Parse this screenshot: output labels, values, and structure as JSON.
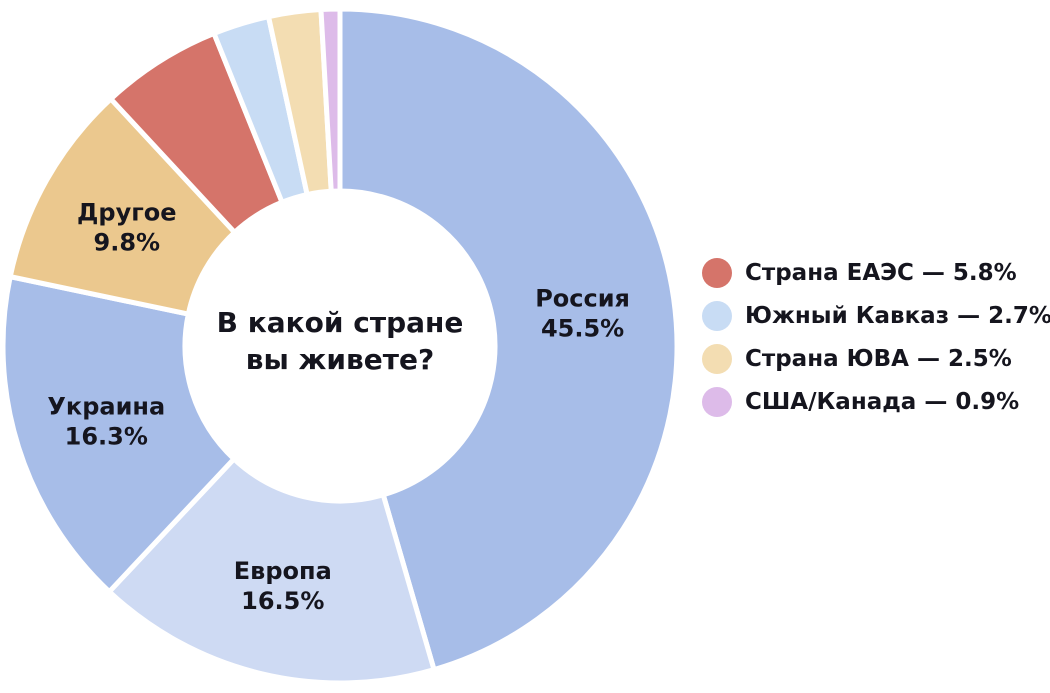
{
  "chart_data": {
    "type": "pie",
    "donut": true,
    "title": "В какой стране вы живете?",
    "title_lines": [
      "В какой стране",
      "вы живете?"
    ],
    "units": "%",
    "start_angle_deg": 0,
    "direction": "clockwise",
    "legend_position": "right",
    "legend_separator": " — ",
    "segments": [
      {
        "label": "Россия",
        "value": 45.5,
        "color": "#a7bde8",
        "placement": "chart"
      },
      {
        "label": "Европа",
        "value": 16.5,
        "color": "#cedaf3",
        "placement": "chart"
      },
      {
        "label": "Украина",
        "value": 16.3,
        "color": "#a7bde8",
        "placement": "chart"
      },
      {
        "label": "Другое",
        "value": 9.8,
        "color": "#ebc88e",
        "placement": "chart"
      },
      {
        "label": "Страна ЕАЭС",
        "value": 5.8,
        "color": "#d5746a",
        "placement": "legend"
      },
      {
        "label": "Южный Кавказ",
        "value": 2.7,
        "color": "#c8dcf4",
        "placement": "legend"
      },
      {
        "label": "Страна ЮВА",
        "value": 2.5,
        "color": "#f3ddb2",
        "placement": "legend"
      },
      {
        "label": "США/Канада",
        "value": 0.9,
        "color": "#ddbbe9",
        "placement": "legend"
      }
    ],
    "colors_note": {
      "text": "#15151e",
      "background": "#ffffff",
      "segment_gap": "#ffffff"
    }
  }
}
